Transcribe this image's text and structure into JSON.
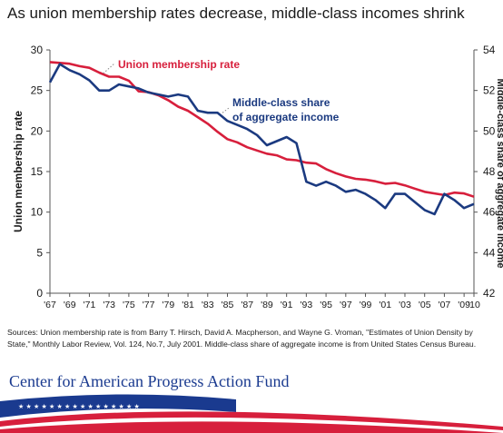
{
  "title": "As union membership rates decrease, middle-class incomes shrink",
  "source_note": "Sources: Union membership rate is from Barry T. Hirsch, David A. Macpherson, and Wayne G. Vroman, \"Estimates of Union Density by State,\" Monthly Labor Review, Vol. 124, No.7, July 2001. Middle-class share of aggregate income is from United States Census Bureau.",
  "organization": "Center for American Progress Action Fund",
  "colors": {
    "union": "#d71f3c",
    "middle_class": "#1b3a80",
    "axis": "#555555",
    "text": "#1a1a1a",
    "flag_blue": "#1a3a8f",
    "flag_red": "#d71f3c"
  },
  "chart_data": {
    "type": "line",
    "title": "As union membership rates decrease, middle-class incomes shrink",
    "x_tick_labels": [
      "'67",
      "'69",
      "'71",
      "'73",
      "'75",
      "'77",
      "'79",
      "'81",
      "'83",
      "'85",
      "'87",
      "'89",
      "'91",
      "'93",
      "'95",
      "'97",
      "'99",
      "'01",
      "'03",
      "'05",
      "'07",
      "'09",
      "'10"
    ],
    "x_tick_years": [
      1967,
      1969,
      1971,
      1973,
      1975,
      1977,
      1979,
      1981,
      1983,
      1985,
      1987,
      1989,
      1991,
      1993,
      1995,
      1997,
      1999,
      2001,
      2003,
      2005,
      2007,
      2009,
      2010
    ],
    "xlim": [
      1967,
      2010
    ],
    "y_left": {
      "label": "Union membership rate",
      "lim": [
        0,
        30
      ],
      "ticks": [
        "0",
        "5",
        "10",
        "15",
        "20",
        "25",
        "30"
      ]
    },
    "y_right": {
      "label": "Middle-class share of aggregate income",
      "lim": [
        42,
        54
      ],
      "ticks": [
        "42",
        "44",
        "46",
        "48",
        "50",
        "52",
        "54"
      ]
    },
    "series": [
      {
        "name": "Union membership rate",
        "axis": "left",
        "annotation": "Union membership rate",
        "x": [
          1967,
          1968,
          1969,
          1970,
          1971,
          1972,
          1973,
          1974,
          1975,
          1976,
          1977,
          1978,
          1979,
          1980,
          1981,
          1982,
          1983,
          1984,
          1985,
          1986,
          1987,
          1988,
          1989,
          1990,
          1991,
          1992,
          1993,
          1994,
          1995,
          1996,
          1997,
          1998,
          1999,
          2000,
          2001,
          2002,
          2003,
          2004,
          2005,
          2006,
          2007,
          2008,
          2009,
          2010
        ],
        "y": [
          28.5,
          28.4,
          28.3,
          28.0,
          27.8,
          27.2,
          26.7,
          26.7,
          26.2,
          24.9,
          24.8,
          24.4,
          23.8,
          23.0,
          22.5,
          21.7,
          20.9,
          19.9,
          19.0,
          18.6,
          18.0,
          17.6,
          17.2,
          17.0,
          16.5,
          16.4,
          16.1,
          16.0,
          15.3,
          14.8,
          14.4,
          14.1,
          14.0,
          13.8,
          13.5,
          13.6,
          13.3,
          12.9,
          12.5,
          12.3,
          12.1,
          12.4,
          12.3,
          11.9
        ]
      },
      {
        "name": "Middle-class share of aggregate income",
        "axis": "right",
        "annotation": [
          "Middle-class share",
          "of aggregate income"
        ],
        "x": [
          1967,
          1968,
          1969,
          1970,
          1971,
          1972,
          1973,
          1974,
          1975,
          1976,
          1977,
          1978,
          1979,
          1980,
          1981,
          1982,
          1983,
          1984,
          1985,
          1986,
          1987,
          1988,
          1989,
          1990,
          1991,
          1992,
          1993,
          1994,
          1995,
          1996,
          1997,
          1998,
          1999,
          2000,
          2001,
          2002,
          2003,
          2004,
          2005,
          2006,
          2007,
          2008,
          2009,
          2010
        ],
        "y": [
          52.4,
          53.3,
          53.0,
          52.8,
          52.5,
          52.0,
          52.0,
          52.3,
          52.2,
          52.1,
          51.9,
          51.8,
          51.7,
          51.8,
          51.7,
          51.0,
          50.9,
          50.9,
          50.5,
          50.3,
          50.1,
          49.8,
          49.3,
          49.5,
          49.7,
          49.4,
          47.5,
          47.3,
          47.5,
          47.3,
          47.0,
          47.1,
          46.9,
          46.6,
          46.2,
          46.9,
          46.9,
          46.5,
          46.1,
          45.9,
          46.9,
          46.6,
          46.2,
          46.4
        ]
      }
    ],
    "grid": false,
    "legend": "inline-annotations"
  }
}
